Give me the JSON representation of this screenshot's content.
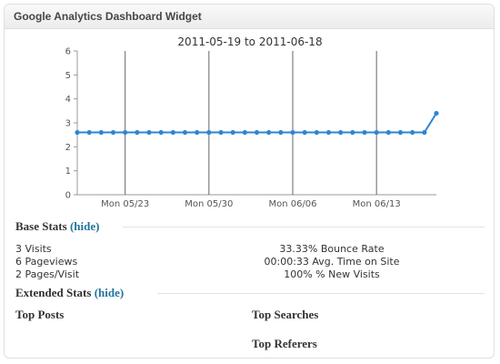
{
  "widget": {
    "title": "Google Analytics Dashboard Widget"
  },
  "chart_data": {
    "type": "line",
    "title": "2011-05-19 to 2011-06-18",
    "x_tick_labels": [
      "Mon 05/23",
      "Mon 05/30",
      "Mon 06/06",
      "Mon 06/13"
    ],
    "y_ticks": [
      "0",
      "1",
      "2",
      "3",
      "4",
      "5",
      "6"
    ],
    "ylim": [
      0,
      6
    ],
    "grid": "vertical lines at weekly ticks",
    "series": [
      {
        "values": [
          2.6,
          2.6,
          2.6,
          2.6,
          2.6,
          2.6,
          2.6,
          2.6,
          2.6,
          2.6,
          2.6,
          2.6,
          2.6,
          2.6,
          2.6,
          2.6,
          2.6,
          2.6,
          2.6,
          2.6,
          2.6,
          2.6,
          2.6,
          2.6,
          2.6,
          2.6,
          2.6,
          2.6,
          2.6,
          2.6,
          3.4
        ]
      }
    ],
    "color": "#2e86d1"
  },
  "base_stats": {
    "heading": "Base Stats",
    "toggle": "(hide)",
    "left": [
      "3 Visits",
      "6 Pageviews",
      "2 Pages/Visit"
    ],
    "right": [
      "33.33% Bounce Rate",
      "00:00:33 Avg. Time on Site",
      "100% % New Visits"
    ]
  },
  "extended_stats": {
    "heading": "Extended Stats",
    "toggle": "(hide)",
    "top_posts": "Top Posts",
    "top_searches": "Top Searches",
    "top_referers": "Top Referers"
  }
}
